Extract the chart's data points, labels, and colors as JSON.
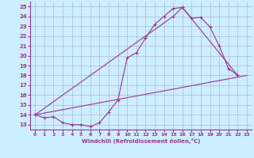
{
  "xlabel": "Windchill (Refroidissement éolien,°C)",
  "bg_color": "#cceeff",
  "line_color": "#993399",
  "grid_color": "#aaaacc",
  "xlim": [
    -0.5,
    23.5
  ],
  "ylim": [
    12.5,
    25.5
  ],
  "yticks": [
    13,
    14,
    15,
    16,
    17,
    18,
    19,
    20,
    21,
    22,
    23,
    24,
    25
  ],
  "xticks": [
    0,
    1,
    2,
    3,
    4,
    5,
    6,
    7,
    8,
    9,
    10,
    11,
    12,
    13,
    14,
    15,
    16,
    17,
    18,
    19,
    20,
    21,
    22,
    23
  ],
  "curve1_x": [
    0,
    1,
    2,
    3,
    4,
    5,
    6,
    7,
    8,
    9,
    10,
    11,
    12,
    13,
    14,
    15,
    16,
    17,
    18,
    19,
    20,
    21,
    22
  ],
  "curve1_y": [
    14.0,
    13.7,
    13.8,
    13.2,
    13.0,
    13.0,
    12.8,
    13.2,
    14.3,
    15.5,
    19.8,
    20.3,
    21.8,
    23.2,
    24.0,
    24.8,
    24.9,
    23.8,
    23.9,
    22.9,
    21.0,
    18.7,
    18.0
  ],
  "curve2_x": [
    0,
    15,
    16,
    22
  ],
  "curve2_y": [
    14.0,
    24.0,
    24.9,
    18.0
  ],
  "curve3_x": [
    0,
    23
  ],
  "curve3_y": [
    14.0,
    18.0
  ]
}
